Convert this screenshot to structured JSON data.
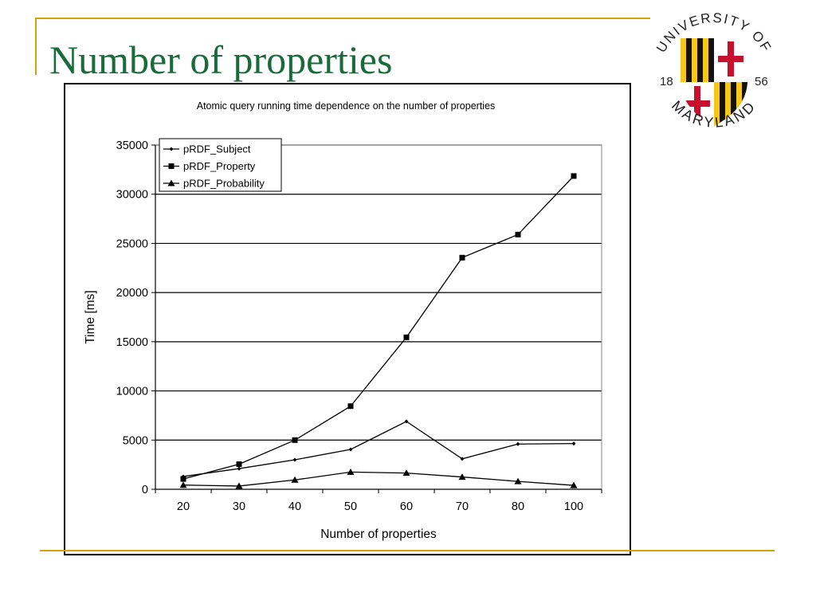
{
  "slide": {
    "title": "Number of properties",
    "title_color": "#1a6b3a",
    "rule_color": "#d4a20a"
  },
  "logo": {
    "text_top": "UNIVERSITY OF",
    "text_bottom": "MARYLAND",
    "year_left": "18",
    "year_right": "56",
    "colors": {
      "gold": "#f6c81c",
      "black": "#111111",
      "red": "#c8102e",
      "white": "#ffffff",
      "lettering": "#222222"
    }
  },
  "chart_data": {
    "type": "line",
    "title": "Atomic query running time dependence on the number of properties",
    "xlabel": "Number of properties",
    "ylabel": "Time [ms]",
    "categories": [
      "20",
      "30",
      "40",
      "50",
      "60",
      "70",
      "80",
      "100"
    ],
    "ylim": [
      0,
      35000
    ],
    "yticks": [
      0,
      5000,
      10000,
      15000,
      20000,
      25000,
      30000,
      35000
    ],
    "grid": true,
    "legend_position": "top-left",
    "series": [
      {
        "name": "pRDF_Subject",
        "marker": "diamond",
        "values": [
          1300,
          2100,
          3000,
          4050,
          6900,
          3100,
          4600,
          4650
        ]
      },
      {
        "name": "pRDF_Property",
        "marker": "square",
        "values": [
          1050,
          2550,
          5000,
          8450,
          15450,
          23550,
          25900,
          31850
        ]
      },
      {
        "name": "pRDF_Probability",
        "marker": "triangle",
        "values": [
          430,
          330,
          950,
          1750,
          1650,
          1250,
          800,
          400
        ]
      }
    ]
  }
}
